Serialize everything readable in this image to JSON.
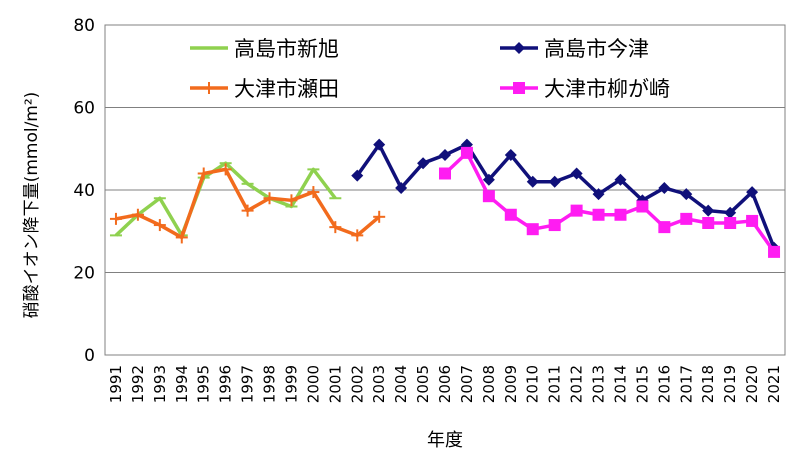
{
  "chart_data": {
    "type": "line",
    "xlabel": "年度",
    "ylabel": "硝酸イオン降下量(mmol/m²)",
    "ylim": [
      0,
      80
    ],
    "yticks": [
      0,
      20,
      40,
      60,
      80
    ],
    "grid": "horizontal",
    "legend_placement": "top",
    "x": [
      "1991",
      "1992",
      "1993",
      "1994",
      "1995",
      "1996",
      "1997",
      "1998",
      "1999",
      "2000",
      "2001",
      "2002",
      "2003",
      "2004",
      "2005",
      "2006",
      "2007",
      "2008",
      "2009",
      "2010",
      "2011",
      "2012",
      "2013",
      "2014",
      "2015",
      "2016",
      "2017",
      "2018",
      "2019",
      "2020",
      "2021"
    ],
    "series": [
      {
        "name": "高島市新旭",
        "color": "#8fd14f",
        "marker": "dash",
        "values": [
          29,
          34,
          38,
          29,
          43,
          46.5,
          41.5,
          38,
          36,
          45,
          38,
          null,
          null,
          null,
          null,
          null,
          null,
          null,
          null,
          null,
          null,
          null,
          null,
          null,
          null,
          null,
          null,
          null,
          null,
          null,
          null
        ]
      },
      {
        "name": "大津市瀬田",
        "color": "#f26b1d",
        "marker": "plus",
        "values": [
          33,
          34,
          31.5,
          28.5,
          44,
          45,
          35,
          38,
          37.5,
          39.5,
          31,
          29,
          33.5,
          null,
          null,
          null,
          null,
          null,
          null,
          null,
          null,
          null,
          null,
          null,
          null,
          null,
          null,
          null,
          null,
          null,
          null
        ]
      },
      {
        "name": "高島市今津",
        "color": "#10107a",
        "marker": "diamond",
        "values": [
          null,
          null,
          null,
          null,
          null,
          null,
          null,
          null,
          null,
          null,
          null,
          43.5,
          51,
          40.5,
          46.5,
          48.5,
          51,
          42.5,
          48.5,
          42,
          42,
          44,
          39,
          42.5,
          37.5,
          40.5,
          39,
          35,
          34.5,
          39.5,
          26
        ]
      },
      {
        "name": "大津市柳が崎",
        "color": "#ff1cf2",
        "marker": "square",
        "values": [
          null,
          null,
          null,
          null,
          null,
          null,
          null,
          null,
          null,
          null,
          null,
          null,
          null,
          null,
          null,
          44,
          49,
          38.5,
          34,
          30.5,
          31.5,
          35,
          34,
          34,
          36,
          31,
          33,
          32,
          32,
          32.5,
          25
        ]
      }
    ]
  }
}
